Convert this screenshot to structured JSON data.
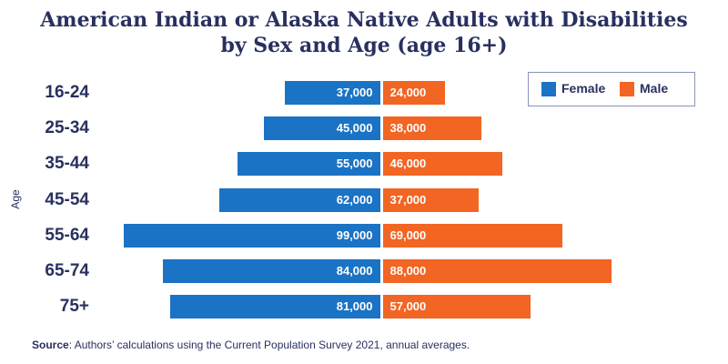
{
  "chart_data": {
    "type": "bar",
    "orientation": "horizontal-diverging",
    "title": "American Indian or Alaska Native Adults with Disabilities by Sex and Age (age 16+)",
    "title_lines": [
      "American Indian or Alaska Native Adults with Disabilities",
      "by Sex and Age (age 16+)"
    ],
    "ylabel": "Age",
    "categories": [
      "16-24",
      "25-34",
      "35-44",
      "45-54",
      "55-64",
      "65-74",
      "75+"
    ],
    "series": [
      {
        "name": "Female",
        "color": "#1a73c4",
        "values": [
          37000,
          45000,
          55000,
          62000,
          99000,
          84000,
          81000
        ],
        "labels": [
          "37,000",
          "45,000",
          "55,000",
          "62,000",
          "99,000",
          "84,000",
          "81,000"
        ]
      },
      {
        "name": "Male",
        "color": "#f26522",
        "values": [
          24000,
          38000,
          46000,
          37000,
          69000,
          88000,
          57000
        ],
        "labels": [
          "24,000",
          "38,000",
          "46,000",
          "37,000",
          "69,000",
          "88,000",
          "57,000"
        ]
      }
    ],
    "legend_position": "top-right"
  },
  "source": {
    "label": "Source",
    "text": ": Authors’ calculations using the Current Population Survey 2021, annual averages."
  }
}
